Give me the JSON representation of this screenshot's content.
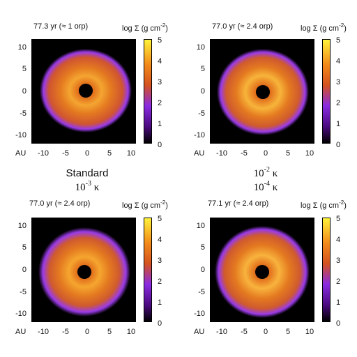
{
  "panels": [
    {
      "id": "p1",
      "time": "77.3 yr (≈ 1 orp)",
      "colorbar_title": "log Σ (g cm",
      "colorbar_title_exp": "-2",
      "colorbar_title_end": ")",
      "model": "Standard"
    },
    {
      "id": "p2",
      "time": "77.0 yr (≈ 2.4 orp)",
      "colorbar_title": "log Σ (g cm",
      "colorbar_title_exp": "-2",
      "colorbar_title_end": ")",
      "model_base": "10",
      "model_exp": "-2",
      "model_sym": "κ"
    },
    {
      "id": "p3",
      "time": "77.0 yr (≈ 2.4 orp)",
      "colorbar_title": "log Σ (g cm",
      "colorbar_title_exp": "-2",
      "colorbar_title_end": ")",
      "model_base": "10",
      "model_exp": "-3",
      "model_sym": "κ"
    },
    {
      "id": "p4",
      "time": "77.1 yr (≈ 2.4 orp)",
      "colorbar_title": "log Σ (g cm",
      "colorbar_title_exp": "-2",
      "colorbar_title_end": ")",
      "model_base": "10",
      "model_exp": "-4",
      "model_sym": "κ"
    }
  ],
  "axes": {
    "y_ticks": [
      "10",
      "5",
      "0",
      "-5",
      "-10"
    ],
    "x_ticks": [
      "-10",
      "-5",
      "0",
      "5",
      "10"
    ],
    "x_unit": "AU"
  },
  "colorbar": {
    "ticks": [
      "5",
      "4",
      "3",
      "2",
      "1",
      "0"
    ],
    "colors": [
      "#000000",
      "#4b0a80",
      "#8a2be2",
      "#d4521f",
      "#f28a1a",
      "#fff23a"
    ]
  }
}
